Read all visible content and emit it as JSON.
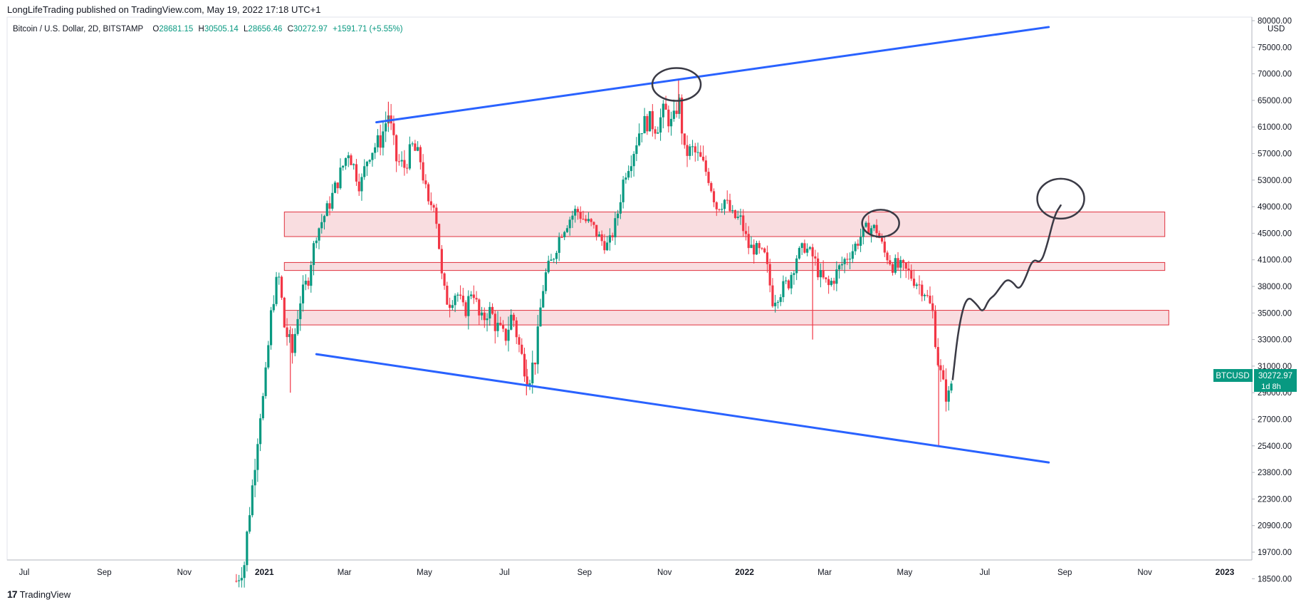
{
  "header": {
    "publisher": "LongLifeTrading published on TradingView.com, May 19, 2022 17:18 UTC+1"
  },
  "legend": {
    "symbol": "Bitcoin / U.S. Dollar, 2D, BITSTAMP",
    "open_label": "O",
    "open": "28681.15",
    "high_label": "H",
    "high": "30505.14",
    "low_label": "L",
    "low": "28656.46",
    "close_label": "C",
    "close": "30272.97",
    "change": "+1591.71 (+5.55%)"
  },
  "price_tag": {
    "ticker": "BTCUSD",
    "price": "30272.97",
    "countdown": "1d 8h"
  },
  "footer": {
    "brand": "TradingView",
    "logo": "17"
  },
  "colors": {
    "up": "#089981",
    "down": "#f23645",
    "trendline": "#2962ff",
    "zone_fill": "#f8d7da",
    "zone_border": "#e0323f",
    "drawing": "#3a3a45"
  },
  "chart_data": {
    "type": "candlestick",
    "title": "Bitcoin / U.S. Dollar, 2D, BITSTAMP",
    "currency": "USD",
    "y_ticks": [
      "80000.00",
      "75000.00",
      "70000.00",
      "65000.00",
      "61000.00",
      "57000.00",
      "53000.00",
      "49000.00",
      "45000.00",
      "41000.00",
      "38000.00",
      "35000.00",
      "33000.00",
      "31000.00",
      "29000.00",
      "27000.00",
      "25400.00",
      "23800.00",
      "22300.00",
      "20900.00",
      "19700.00",
      "18500.00"
    ],
    "x_ticks": [
      {
        "label": "Jul",
        "t": -0.5,
        "bold": false
      },
      {
        "label": "Sep",
        "t": 1.5,
        "bold": false
      },
      {
        "label": "Nov",
        "t": 3.5,
        "bold": false
      },
      {
        "label": "2021",
        "t": 5.5,
        "bold": true
      },
      {
        "label": "Mar",
        "t": 7.5,
        "bold": false
      },
      {
        "label": "May",
        "t": 9.5,
        "bold": false
      },
      {
        "label": "Jul",
        "t": 11.5,
        "bold": false
      },
      {
        "label": "Sep",
        "t": 13.5,
        "bold": false
      },
      {
        "label": "Nov",
        "t": 15.5,
        "bold": false
      },
      {
        "label": "2022",
        "t": 17.5,
        "bold": true
      },
      {
        "label": "Mar",
        "t": 19.5,
        "bold": false
      },
      {
        "label": "May",
        "t": 21.5,
        "bold": false
      },
      {
        "label": "Jul",
        "t": 23.5,
        "bold": false
      },
      {
        "label": "Sep",
        "t": 25.5,
        "bold": false
      },
      {
        "label": "Nov",
        "t": 27.5,
        "bold": false
      },
      {
        "label": "2023",
        "t": 29.5,
        "bold": true
      }
    ],
    "time_unit": "months since 2020-06-15",
    "price_path": [
      [
        4.8,
        18400
      ],
      [
        5.0,
        19200
      ],
      [
        5.2,
        23000
      ],
      [
        5.4,
        27500
      ],
      [
        5.5,
        29000
      ],
      [
        5.7,
        36000
      ],
      [
        5.85,
        39500
      ],
      [
        6.0,
        34000
      ],
      [
        6.2,
        32000
      ],
      [
        6.4,
        36500
      ],
      [
        6.6,
        39000
      ],
      [
        6.8,
        45000
      ],
      [
        7.1,
        49000
      ],
      [
        7.4,
        54000
      ],
      [
        7.6,
        57500
      ],
      [
        7.9,
        52000
      ],
      [
        8.1,
        57000
      ],
      [
        8.4,
        59000
      ],
      [
        8.6,
        63000
      ],
      [
        8.8,
        56000
      ],
      [
        9.0,
        55000
      ],
      [
        9.2,
        58000
      ],
      [
        9.4,
        56000
      ],
      [
        9.6,
        49000
      ],
      [
        9.75,
        50000
      ],
      [
        9.95,
        38000
      ],
      [
        10.1,
        36000
      ],
      [
        10.3,
        37500
      ],
      [
        10.5,
        35000
      ],
      [
        10.7,
        38000
      ],
      [
        10.9,
        34000
      ],
      [
        11.1,
        35500
      ],
      [
        11.3,
        34000
      ],
      [
        11.5,
        33000
      ],
      [
        11.7,
        35000
      ],
      [
        11.9,
        32000
      ],
      [
        12.1,
        30000
      ],
      [
        12.3,
        32000
      ],
      [
        12.5,
        39000
      ],
      [
        12.7,
        41000
      ],
      [
        12.9,
        45000
      ],
      [
        13.1,
        47000
      ],
      [
        13.3,
        48500
      ],
      [
        13.5,
        47000
      ],
      [
        13.7,
        46000
      ],
      [
        13.9,
        44000
      ],
      [
        14.1,
        43000
      ],
      [
        14.3,
        47000
      ],
      [
        14.5,
        54000
      ],
      [
        14.7,
        57000
      ],
      [
        14.9,
        61000
      ],
      [
        15.1,
        62000
      ],
      [
        15.3,
        61000
      ],
      [
        15.5,
        63500
      ],
      [
        15.7,
        61000
      ],
      [
        15.85,
        65500
      ],
      [
        16.0,
        57000
      ],
      [
        16.2,
        57500
      ],
      [
        16.4,
        56000
      ],
      [
        16.6,
        53500
      ],
      [
        16.8,
        49000
      ],
      [
        17.0,
        50000
      ],
      [
        17.2,
        47500
      ],
      [
        17.4,
        47000
      ],
      [
        17.6,
        43000
      ],
      [
        17.8,
        42500
      ],
      [
        18.0,
        41500
      ],
      [
        18.2,
        36500
      ],
      [
        18.4,
        37500
      ],
      [
        18.6,
        38500
      ],
      [
        18.8,
        41500
      ],
      [
        19.0,
        43000
      ],
      [
        19.2,
        41500
      ],
      [
        19.4,
        39000
      ],
      [
        19.6,
        38000
      ],
      [
        19.8,
        39500
      ],
      [
        20.0,
        41000
      ],
      [
        20.2,
        42500
      ],
      [
        20.4,
        44500
      ],
      [
        20.6,
        46000
      ],
      [
        20.8,
        45500
      ],
      [
        21.0,
        42000
      ],
      [
        21.2,
        40500
      ],
      [
        21.4,
        40000
      ],
      [
        21.6,
        39500
      ],
      [
        21.8,
        38500
      ],
      [
        22.0,
        37500
      ],
      [
        22.2,
        35000
      ],
      [
        22.35,
        31000
      ],
      [
        22.5,
        29000
      ],
      [
        22.6,
        28700
      ],
      [
        22.7,
        30273
      ]
    ],
    "wicks": [
      {
        "t": 22.35,
        "high": 32000,
        "low": 25400
      },
      {
        "t": 15.85,
        "high": 69000,
        "low": 63000
      },
      {
        "t": 8.6,
        "high": 64800,
        "low": 61000
      },
      {
        "t": 19.2,
        "high": 43000,
        "low": 33000
      },
      {
        "t": 12.05,
        "high": 31500,
        "low": 28800
      },
      {
        "t": 6.15,
        "high": 34000,
        "low": 29000
      }
    ],
    "zones": [
      {
        "t0": 6.0,
        "t1": 28.0,
        "p_top": 48200,
        "p_bottom": 44500
      },
      {
        "t0": 6.0,
        "t1": 28.0,
        "p_top": 40700,
        "p_bottom": 39800
      },
      {
        "t0": 6.0,
        "t1": 28.1,
        "p_top": 35300,
        "p_bottom": 34100
      }
    ],
    "trendlines": [
      {
        "t0": 8.3,
        "p0": 61700,
        "t1": 25.1,
        "p1": 78800
      },
      {
        "t0": 6.8,
        "p0": 31900,
        "t1": 25.1,
        "p1": 24400
      }
    ],
    "projection": [
      [
        22.7,
        30000
      ],
      [
        22.85,
        34000
      ],
      [
        23.05,
        37000
      ],
      [
        23.3,
        36000
      ],
      [
        23.45,
        35000
      ],
      [
        23.6,
        36500
      ],
      [
        23.75,
        37000
      ],
      [
        23.9,
        38000
      ],
      [
        24.05,
        38800
      ],
      [
        24.2,
        38500
      ],
      [
        24.35,
        37600
      ],
      [
        24.5,
        38700
      ],
      [
        24.7,
        41200
      ],
      [
        24.9,
        40600
      ],
      [
        25.05,
        43000
      ],
      [
        25.25,
        47800
      ],
      [
        25.4,
        49200
      ]
    ],
    "circles": [
      {
        "t": 15.8,
        "p": 68000,
        "rx": 34,
        "ry": 23
      },
      {
        "t": 20.9,
        "p": 46500,
        "rx": 26,
        "ry": 19
      },
      {
        "t": 25.4,
        "p": 50200,
        "rx": 33,
        "ry": 28
      }
    ]
  }
}
